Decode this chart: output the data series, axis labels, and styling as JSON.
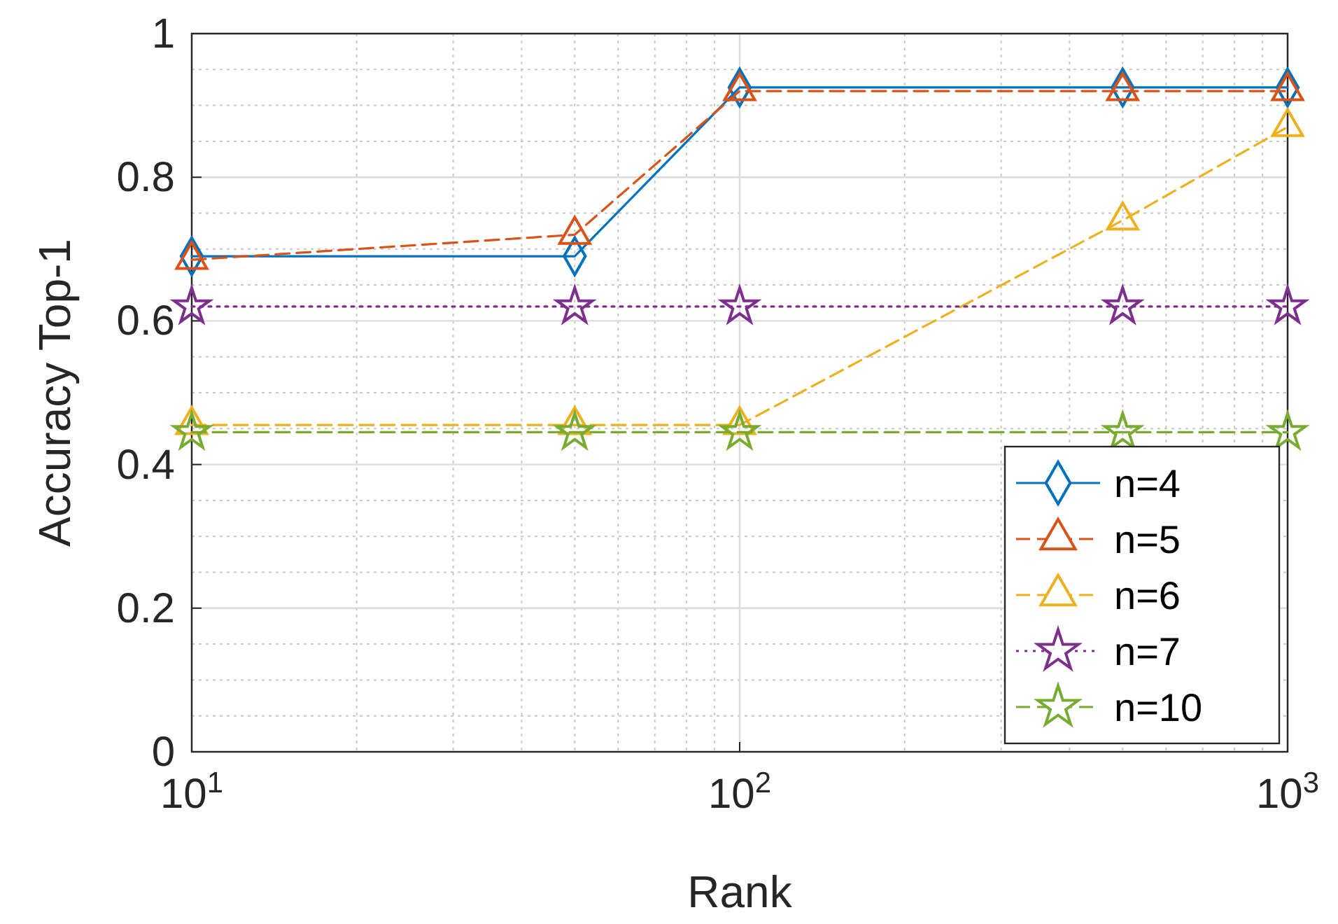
{
  "chart_data": {
    "type": "line",
    "xlabel": "Rank",
    "ylabel": "Accuracy Top-1",
    "log": "x",
    "xlim": [
      10,
      1000
    ],
    "xticks": [
      {
        "value": 10,
        "label": "10$^{1}$"
      },
      {
        "value": 100,
        "label": "10$^{2}$"
      },
      {
        "value": 1000,
        "label": "10$^{3}$"
      }
    ],
    "ylim": [
      0,
      1
    ],
    "yticks": [
      0,
      0.2,
      0.4,
      0.6,
      0.8,
      1
    ],
    "x": [
      10,
      50,
      100,
      500,
      1000
    ],
    "series": [
      {
        "name": "n=4",
        "color": "#0072bd",
        "values": [
          0.69,
          0.69,
          0.925,
          0.925,
          0.925
        ],
        "marker": "diamond",
        "line_style": "solid"
      },
      {
        "name": "n=5",
        "color": "#d95319",
        "values": [
          0.685,
          0.72,
          0.92,
          0.92,
          0.92
        ],
        "marker": "triangle",
        "line_style": "dashed"
      },
      {
        "name": "n=6",
        "color": "#edb120",
        "values": [
          0.455,
          0.455,
          0.455,
          0.74,
          0.87
        ],
        "marker": "triangle",
        "line_style": "dashed"
      },
      {
        "name": "n=7",
        "color": "#7e2f8e",
        "values": [
          0.62,
          0.62,
          0.62,
          0.62,
          0.62
        ],
        "marker": "star",
        "line_style": "dotted"
      },
      {
        "name": "n=10",
        "color": "#77ac30",
        "values": [
          0.445,
          0.445,
          0.445,
          0.445,
          0.445
        ],
        "marker": "star",
        "line_style": "dashed"
      }
    ],
    "grid": true,
    "legend": "bottom right"
  }
}
